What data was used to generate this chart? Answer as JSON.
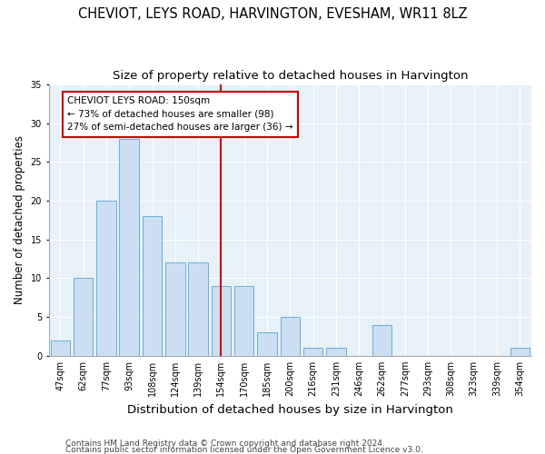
{
  "title1": "CHEVIOT, LEYS ROAD, HARVINGTON, EVESHAM, WR11 8LZ",
  "title2": "Size of property relative to detached houses in Harvington",
  "xlabel": "Distribution of detached houses by size in Harvington",
  "ylabel": "Number of detached properties",
  "categories": [
    "47sqm",
    "62sqm",
    "77sqm",
    "93sqm",
    "108sqm",
    "124sqm",
    "139sqm",
    "154sqm",
    "170sqm",
    "185sqm",
    "200sqm",
    "216sqm",
    "231sqm",
    "246sqm",
    "262sqm",
    "277sqm",
    "293sqm",
    "308sqm",
    "323sqm",
    "339sqm",
    "354sqm"
  ],
  "values": [
    2,
    10,
    20,
    28,
    18,
    12,
    12,
    9,
    9,
    3,
    5,
    1,
    1,
    0,
    4,
    0,
    0,
    0,
    0,
    0,
    1
  ],
  "bar_color": "#ccdff2",
  "bar_edgecolor": "#6aaed6",
  "bar_linewidth": 0.7,
  "vline_index": 7,
  "vline_color": "#cc0000",
  "annotation_title": "CHEVIOT LEYS ROAD: 150sqm",
  "annotation_line1": "← 73% of detached houses are smaller (98)",
  "annotation_line2": "27% of semi-detached houses are larger (36) →",
  "annotation_box_facecolor": "#ffffff",
  "annotation_box_edgecolor": "#cc0000",
  "ylim": [
    0,
    35
  ],
  "yticks": [
    0,
    5,
    10,
    15,
    20,
    25,
    30,
    35
  ],
  "background_color": "#e8f0f8",
  "footer1": "Contains HM Land Registry data © Crown copyright and database right 2024.",
  "footer2": "Contains public sector information licensed under the Open Government Licence v3.0.",
  "title_fontsize": 10.5,
  "subtitle_fontsize": 9.5,
  "tick_fontsize": 7,
  "ylabel_fontsize": 8.5,
  "xlabel_fontsize": 9.5,
  "footer_fontsize": 6.5,
  "annotation_fontsize": 7.5
}
